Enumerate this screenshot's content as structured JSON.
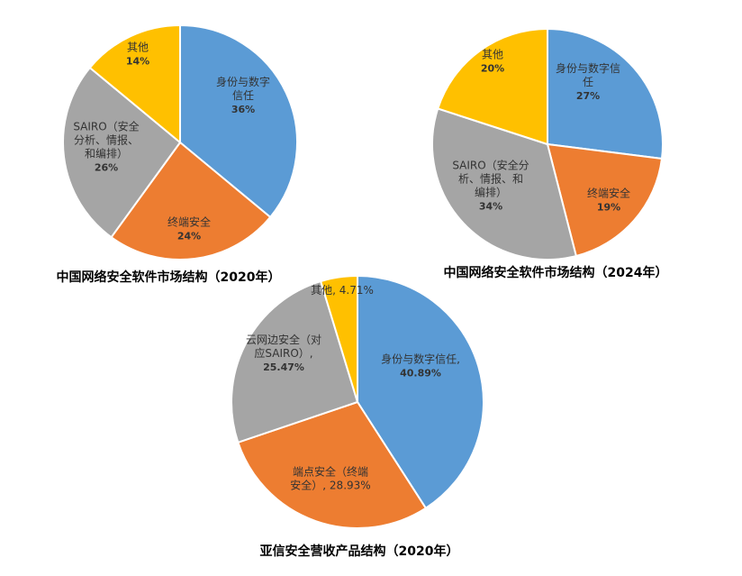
{
  "chart_data": [
    {
      "type": "pie",
      "title": "中国网络安全软件市场结构（2020年）",
      "categories": [
        "身份与数字信任",
        "终端安全",
        "SAIRO（安全分析、情报、和编排）",
        "其他"
      ],
      "values": [
        36,
        24,
        26,
        14
      ],
      "labels": [
        {
          "lines": [
            "身份与数字",
            "信任"
          ],
          "pct": "36%"
        },
        {
          "lines": [
            "终端安全"
          ],
          "pct": "24%"
        },
        {
          "lines": [
            "SAIRO（安全",
            "分析、情报、",
            "和编排）"
          ],
          "pct": "26%"
        },
        {
          "lines": [
            "其他"
          ],
          "pct": "14%"
        }
      ],
      "colors": [
        "#5B9BD5",
        "#ED7D31",
        "#A5A5A5",
        "#FFC000"
      ]
    },
    {
      "type": "pie",
      "title": "中国网络安全软件市场结构（2024年）",
      "categories": [
        "身份与数字信任",
        "终端安全",
        "SAIRO（安全分析、情报、和编排）",
        "其他"
      ],
      "values": [
        27,
        19,
        34,
        20
      ],
      "labels": [
        {
          "lines": [
            "身份与数字信",
            "任"
          ],
          "pct": "27%"
        },
        {
          "lines": [
            "终端安全"
          ],
          "pct": "19%"
        },
        {
          "lines": [
            "SAIRO（安全分",
            "析、情报、和",
            "编排）"
          ],
          "pct": "34%"
        },
        {
          "lines": [
            "其他"
          ],
          "pct": "20%"
        }
      ],
      "colors": [
        "#5B9BD5",
        "#ED7D31",
        "#A5A5A5",
        "#FFC000"
      ]
    },
    {
      "type": "pie",
      "title": "亚信安全营收产品结构（2020年）",
      "categories": [
        "身份与数字信任",
        "端点安全（终端安全）",
        "云网边安全（对应SAIRO）",
        "其他"
      ],
      "values": [
        40.89,
        28.93,
        25.47,
        4.71
      ],
      "labels": [
        {
          "lines": [
            "身份与数字信任,"
          ],
          "pct": "40.89%"
        },
        {
          "lines": [
            "端点安全（终端",
            "安全）, 28.93%"
          ],
          "pct": ""
        },
        {
          "lines": [
            "云网边安全（对",
            "应SAIRO）,"
          ],
          "pct": "25.47%"
        },
        {
          "lines": [
            "其他, 4.71%"
          ],
          "pct": ""
        }
      ],
      "colors": [
        "#5B9BD5",
        "#ED7D31",
        "#A5A5A5",
        "#FFC000"
      ]
    }
  ]
}
